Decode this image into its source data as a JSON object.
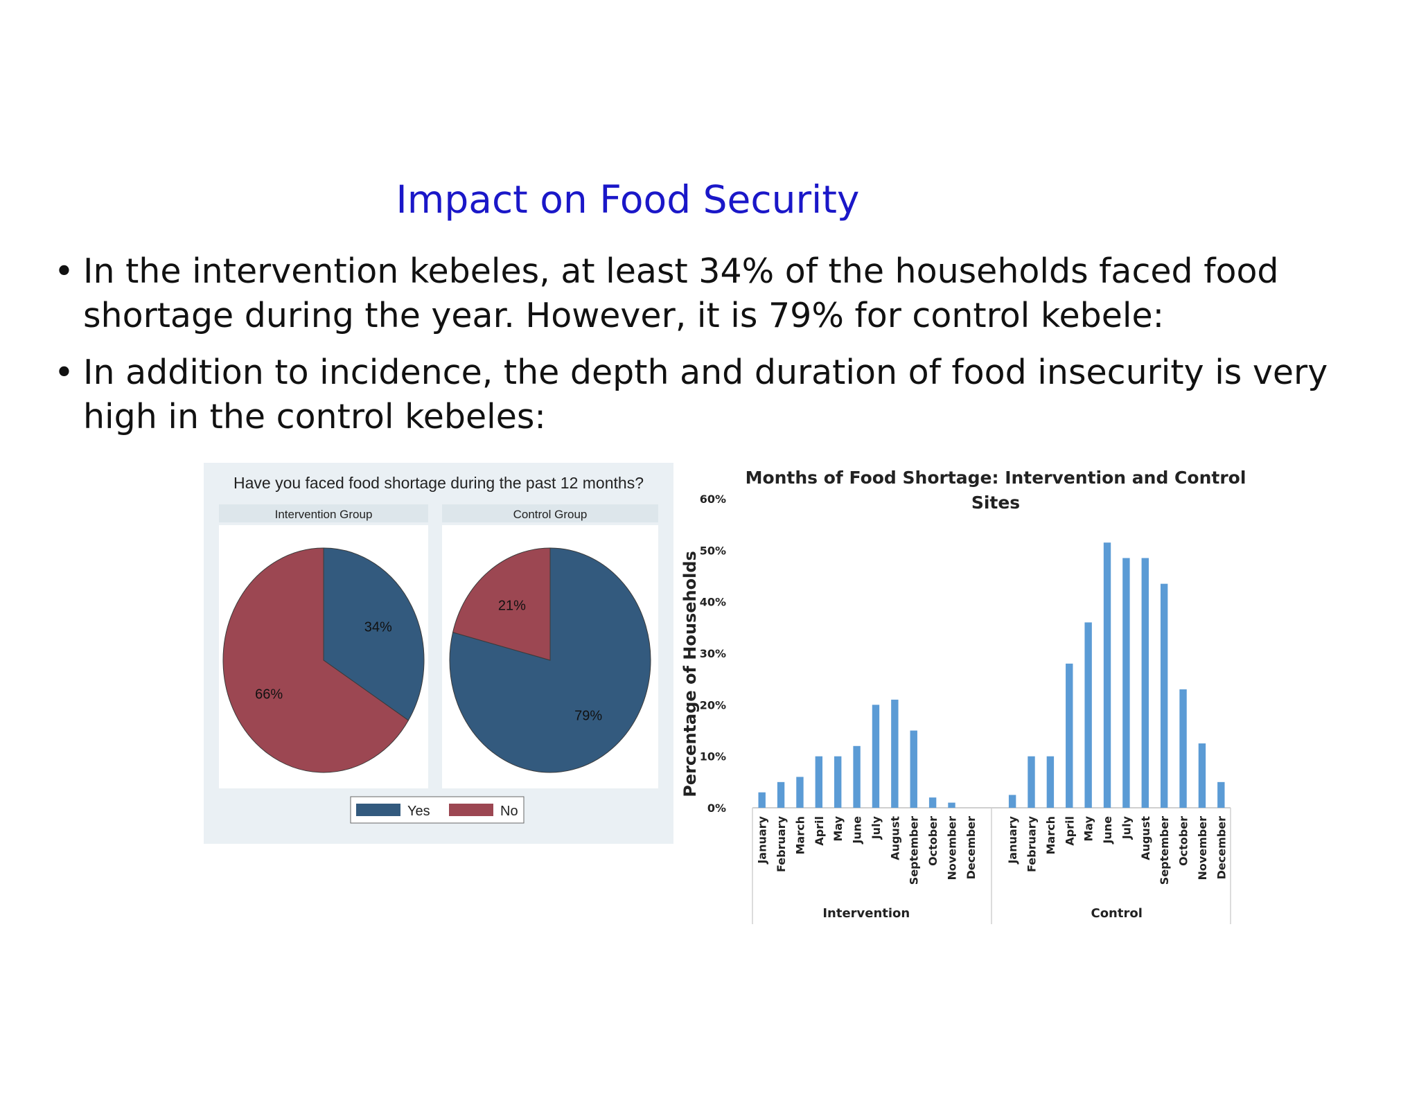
{
  "slide": {
    "title": "Impact on Food Security",
    "bullet_char": "•",
    "bullets": [
      "In the intervention kebeles, at least 34% of the households faced food shortage during the year. However, it is 79% for control kebele:",
      "In addition to incidence, the depth and duration of food insecurity is very high in the control kebeles:"
    ]
  },
  "colors": {
    "title": "#1a17c8",
    "yes": "#335a7e",
    "no": "#9c4752",
    "bar": "#5b9bd5",
    "panel_bg": "#eaf0f4",
    "strip_bg": "#dde6eb"
  },
  "chart_data": [
    {
      "type": "pie",
      "title": "Have you faced food shortage during the past 12 months?",
      "legend": [
        "Yes",
        "No"
      ],
      "legend_position": "bottom",
      "panels": [
        {
          "name": "Intervention Group",
          "slices": [
            {
              "label": "Yes",
              "value": 34,
              "text": "34%"
            },
            {
              "label": "No",
              "value": 66,
              "text": "66%"
            }
          ]
        },
        {
          "name": "Control Group",
          "slices": [
            {
              "label": "Yes",
              "value": 79,
              "text": "79%"
            },
            {
              "label": "No",
              "value": 21,
              "text": "21%"
            }
          ]
        }
      ]
    },
    {
      "type": "bar",
      "title": "Months of Food Shortage: Intervention and Control Sites",
      "ylabel": "Percentage of Households",
      "xlabel": "",
      "ylim": [
        0,
        60
      ],
      "yticks": [
        "0%",
        "10%",
        "20%",
        "30%",
        "40%",
        "50%",
        "60%"
      ],
      "grid": false,
      "groups": [
        {
          "name": "Intervention",
          "categories": [
            "January",
            "February",
            "March",
            "April",
            "May",
            "June",
            "July",
            "August",
            "September",
            "October",
            "November",
            "December"
          ],
          "values": [
            3,
            5,
            6,
            10,
            10,
            12,
            20,
            21,
            15,
            2,
            1,
            0
          ]
        },
        {
          "name": "Control",
          "categories": [
            "January",
            "February",
            "March",
            "April",
            "May",
            "June",
            "July",
            "August",
            "September",
            "October",
            "November",
            "December"
          ],
          "values": [
            2.5,
            10,
            10,
            28,
            36,
            51.5,
            48.5,
            48.5,
            43.5,
            23,
            12.5,
            5
          ]
        }
      ]
    }
  ]
}
